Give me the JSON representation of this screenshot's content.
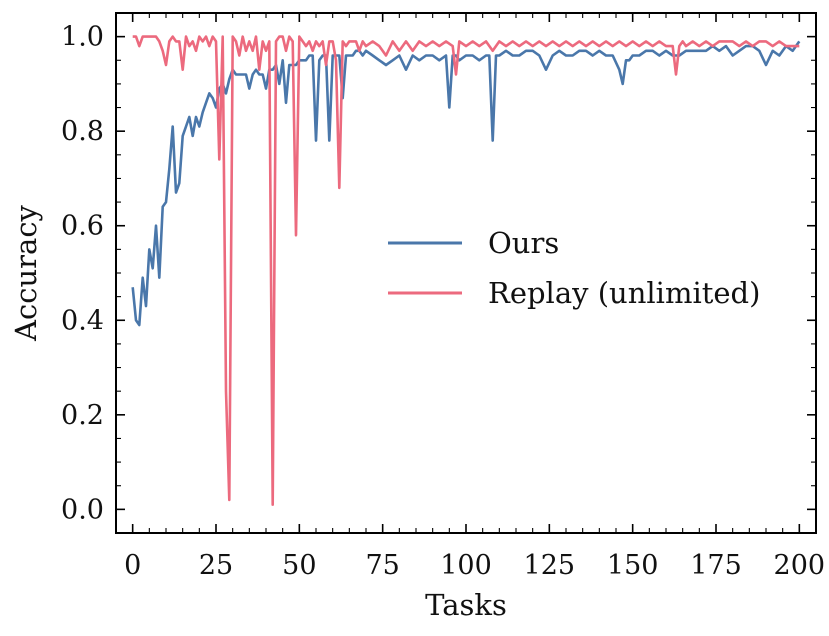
{
  "chart_data": {
    "type": "line",
    "title": "",
    "xlabel": "Tasks",
    "ylabel": "Accuracy",
    "xlim": [
      -5,
      205
    ],
    "ylim": [
      -0.05,
      1.05
    ],
    "xticks": [
      0,
      25,
      50,
      75,
      100,
      125,
      150,
      175,
      200
    ],
    "xtick_labels": [
      "0",
      "25",
      "50",
      "75",
      "100",
      "125",
      "150",
      "175",
      "200"
    ],
    "yticks": [
      0.0,
      0.2,
      0.4,
      0.6,
      0.8,
      1.0
    ],
    "ytick_labels": [
      "0.0",
      "0.2",
      "0.4",
      "0.6",
      "0.8",
      "1.0"
    ],
    "grid": false,
    "legend_position": "center-right",
    "series": [
      {
        "name": "Ours",
        "color": "#4a77aa",
        "x": [
          0,
          1,
          2,
          3,
          4,
          5,
          6,
          7,
          8,
          9,
          10,
          11,
          12,
          13,
          14,
          15,
          16,
          17,
          18,
          19,
          20,
          21,
          22,
          23,
          24,
          25,
          26,
          27,
          28,
          29,
          30,
          31,
          32,
          33,
          34,
          35,
          36,
          37,
          38,
          39,
          40,
          41,
          42,
          43,
          44,
          45,
          46,
          47,
          48,
          49,
          50,
          51,
          52,
          53,
          54,
          55,
          56,
          57,
          58,
          59,
          60,
          61,
          62,
          63,
          64,
          65,
          66,
          67,
          68,
          69,
          70,
          72,
          74,
          76,
          78,
          80,
          82,
          84,
          86,
          88,
          90,
          92,
          94,
          95,
          96,
          97,
          98,
          100,
          102,
          104,
          106,
          107,
          108,
          109,
          110,
          112,
          114,
          116,
          118,
          120,
          122,
          124,
          126,
          128,
          130,
          132,
          134,
          136,
          138,
          140,
          142,
          144,
          146,
          147,
          148,
          149,
          150,
          152,
          154,
          156,
          158,
          160,
          162,
          164,
          166,
          168,
          170,
          172,
          174,
          176,
          178,
          180,
          182,
          184,
          186,
          188,
          190,
          192,
          194,
          196,
          198,
          200
        ],
        "y": [
          0.47,
          0.4,
          0.39,
          0.49,
          0.43,
          0.55,
          0.51,
          0.6,
          0.49,
          0.64,
          0.65,
          0.72,
          0.81,
          0.67,
          0.69,
          0.79,
          0.81,
          0.83,
          0.79,
          0.83,
          0.81,
          0.84,
          0.86,
          0.88,
          0.87,
          0.85,
          0.89,
          0.9,
          0.88,
          0.91,
          0.93,
          0.92,
          0.92,
          0.92,
          0.92,
          0.89,
          0.92,
          0.93,
          0.92,
          0.92,
          0.89,
          0.93,
          0.93,
          0.94,
          0.9,
          0.95,
          0.86,
          0.94,
          0.94,
          0.94,
          0.95,
          0.95,
          0.95,
          0.96,
          0.96,
          0.78,
          0.95,
          0.96,
          0.96,
          0.78,
          0.96,
          0.96,
          0.96,
          0.87,
          0.96,
          0.96,
          0.96,
          0.97,
          0.97,
          0.96,
          0.97,
          0.96,
          0.95,
          0.94,
          0.95,
          0.96,
          0.93,
          0.96,
          0.95,
          0.96,
          0.96,
          0.95,
          0.96,
          0.85,
          0.96,
          0.96,
          0.95,
          0.96,
          0.96,
          0.95,
          0.96,
          0.96,
          0.78,
          0.96,
          0.96,
          0.97,
          0.96,
          0.96,
          0.97,
          0.97,
          0.96,
          0.93,
          0.96,
          0.97,
          0.96,
          0.96,
          0.97,
          0.97,
          0.96,
          0.97,
          0.96,
          0.96,
          0.93,
          0.9,
          0.95,
          0.95,
          0.96,
          0.96,
          0.97,
          0.97,
          0.96,
          0.97,
          0.96,
          0.96,
          0.97,
          0.97,
          0.97,
          0.97,
          0.98,
          0.97,
          0.98,
          0.96,
          0.97,
          0.98,
          0.98,
          0.97,
          0.94,
          0.97,
          0.96,
          0.98,
          0.97,
          0.99
        ]
      },
      {
        "name": "Replay (unlimited)",
        "color": "#ec6a7e",
        "x": [
          0,
          1,
          2,
          3,
          4,
          5,
          6,
          7,
          8,
          9,
          10,
          11,
          12,
          13,
          14,
          15,
          16,
          17,
          18,
          19,
          20,
          21,
          22,
          23,
          24,
          25,
          26,
          27,
          28,
          29,
          30,
          31,
          32,
          33,
          34,
          35,
          36,
          37,
          38,
          39,
          40,
          41,
          42,
          43,
          44,
          45,
          46,
          47,
          48,
          49,
          50,
          51,
          52,
          53,
          54,
          55,
          56,
          57,
          58,
          59,
          60,
          61,
          62,
          63,
          64,
          65,
          66,
          67,
          68,
          69,
          70,
          72,
          74,
          76,
          78,
          80,
          82,
          84,
          86,
          88,
          90,
          92,
          94,
          96,
          97,
          98,
          100,
          102,
          104,
          106,
          108,
          110,
          112,
          114,
          116,
          118,
          120,
          122,
          124,
          126,
          128,
          130,
          132,
          134,
          136,
          138,
          140,
          142,
          144,
          146,
          148,
          150,
          152,
          154,
          156,
          158,
          160,
          162,
          163,
          164,
          165,
          166,
          168,
          170,
          172,
          174,
          176,
          178,
          180,
          182,
          184,
          186,
          188,
          190,
          192,
          194,
          196,
          198,
          200
        ],
        "y": [
          1.0,
          1.0,
          0.98,
          1.0,
          1.0,
          1.0,
          1.0,
          1.0,
          0.99,
          0.97,
          0.94,
          0.99,
          1.0,
          0.99,
          0.99,
          0.93,
          1.0,
          0.98,
          0.99,
          0.97,
          1.0,
          0.99,
          1.0,
          0.98,
          1.0,
          0.99,
          0.74,
          1.0,
          0.25,
          0.02,
          1.0,
          0.99,
          0.96,
          1.0,
          0.97,
          0.99,
          0.97,
          1.0,
          0.93,
          0.99,
          0.97,
          0.99,
          0.01,
          0.99,
          1.0,
          1.0,
          0.97,
          1.0,
          0.99,
          0.58,
          1.0,
          0.99,
          0.98,
          0.99,
          0.97,
          0.99,
          0.98,
          0.99,
          0.94,
          0.99,
          0.99,
          0.95,
          0.68,
          0.99,
          0.98,
          0.99,
          0.99,
          0.99,
          0.97,
          0.99,
          0.98,
          0.99,
          0.98,
          0.96,
          0.99,
          0.97,
          0.99,
          0.97,
          0.99,
          0.98,
          0.99,
          0.98,
          0.99,
          0.98,
          0.92,
          0.99,
          0.98,
          0.99,
          0.98,
          0.99,
          0.97,
          0.99,
          0.98,
          0.99,
          0.98,
          0.99,
          0.98,
          0.99,
          0.98,
          0.99,
          0.98,
          0.99,
          0.98,
          0.99,
          0.98,
          0.99,
          0.98,
          0.99,
          0.98,
          0.99,
          0.98,
          0.99,
          0.98,
          0.99,
          0.98,
          0.99,
          0.98,
          0.98,
          0.92,
          0.98,
          0.99,
          0.98,
          0.99,
          0.98,
          0.99,
          0.98,
          0.99,
          0.99,
          0.99,
          0.98,
          0.99,
          0.98,
          0.99,
          0.99,
          0.98,
          0.99,
          0.98,
          0.98,
          0.98
        ]
      }
    ]
  }
}
